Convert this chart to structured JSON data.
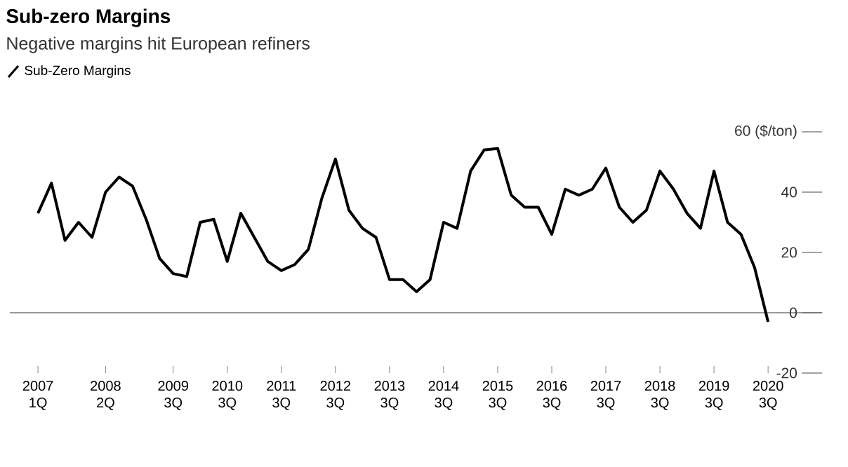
{
  "chart_data": {
    "type": "line",
    "title": "Sub-zero Margins",
    "subtitle": "Negative margins hit European refiners",
    "categories": [
      "2007 1Q",
      null,
      null,
      null,
      null,
      "2008 2Q",
      null,
      null,
      null,
      null,
      "2009 3Q",
      null,
      null,
      null,
      "2010 3Q",
      null,
      null,
      null,
      "2011 3Q",
      null,
      null,
      null,
      "2012 3Q",
      null,
      null,
      null,
      "2013 3Q",
      null,
      null,
      null,
      "2014 3Q",
      null,
      null,
      null,
      "2015 3Q",
      null,
      null,
      null,
      "2016 3Q",
      null,
      null,
      null,
      "2017 3Q",
      null,
      null,
      null,
      "2018 3Q",
      null,
      null,
      null,
      "2019 3Q",
      null,
      null,
      null,
      "2020 3Q"
    ],
    "series": [
      {
        "name": "Sub-Zero Margins",
        "color": "#000000",
        "values": [
          33,
          43,
          24,
          30,
          25,
          40,
          45,
          42,
          31,
          18,
          13,
          12,
          30,
          31,
          17,
          33,
          25,
          17,
          14,
          16,
          21,
          38,
          51,
          34,
          28,
          25,
          11,
          11,
          7,
          11,
          30,
          28,
          47,
          54,
          54.5,
          39,
          35,
          35,
          26,
          41,
          39,
          41,
          48,
          35,
          30,
          34,
          47,
          41,
          33,
          28,
          47,
          30,
          26,
          15,
          -3
        ]
      }
    ],
    "ylim": [
      -20,
      60
    ],
    "yticks": [
      -20,
      0,
      20,
      40,
      {
        "value": 60,
        "label": "60 ($/ton)"
      }
    ],
    "ref_lines": [
      {
        "axis": "y",
        "value": 0,
        "color": "#777777"
      }
    ],
    "grid": false,
    "legend": "top left",
    "line_style": "solid",
    "marker": "none"
  }
}
